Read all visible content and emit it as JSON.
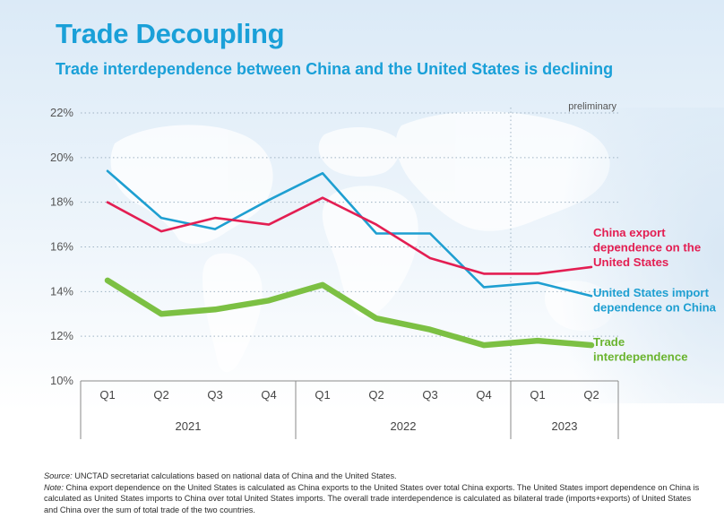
{
  "header": {
    "title": "Trade Decoupling",
    "subtitle": "Trade interdependence between China and the United States is declining"
  },
  "chart_data": {
    "type": "line",
    "title": "Trade Decoupling",
    "subtitle": "Trade interdependence between China and the United States is declining",
    "xlabel": "",
    "ylabel": "",
    "ylim": [
      10,
      22
    ],
    "yticks": [
      10,
      12,
      14,
      16,
      18,
      20,
      22
    ],
    "ytick_labels": [
      "10%",
      "12%",
      "14%",
      "16%",
      "18%",
      "20%",
      "22%"
    ],
    "grid": true,
    "categories": [
      "Q1",
      "Q2",
      "Q3",
      "Q4",
      "Q1",
      "Q2",
      "Q3",
      "Q4",
      "Q1",
      "Q2"
    ],
    "year_groups": [
      {
        "label": "2021",
        "span": 4
      },
      {
        "label": "2022",
        "span": 4
      },
      {
        "label": "2023",
        "span": 2
      }
    ],
    "preliminary_label": "preliminary",
    "series": [
      {
        "name": "United States import dependence on China",
        "label_lines": [
          "United States import",
          "dependence on China"
        ],
        "color": "#1e9fd1",
        "values": [
          19.4,
          17.3,
          16.8,
          18.1,
          19.3,
          16.6,
          16.6,
          14.2,
          14.4,
          13.8
        ]
      },
      {
        "name": "China export dependence on the United States",
        "label_lines": [
          "China export",
          "dependence on the",
          "United States"
        ],
        "color": "#e31e52",
        "values": [
          18.0,
          16.7,
          17.3,
          17.0,
          18.2,
          17.0,
          15.5,
          14.8,
          14.8,
          15.1
        ]
      },
      {
        "name": "Trade interdependence",
        "label_lines": [
          "Trade",
          "interdependence"
        ],
        "color": "#7cc043",
        "values": [
          14.5,
          13.0,
          13.2,
          13.6,
          14.3,
          12.8,
          12.3,
          11.6,
          11.8,
          11.6
        ]
      }
    ]
  },
  "footnotes": {
    "source_label": "Source:",
    "source_text": "UNCTAD secretariat calculations based on national data of China and the United States.",
    "note_label": "Note:",
    "note_text": "China export dependence on the United States is calculated as China exports to the United States over total China exports. The United States import dependence on China is calculated as United States imports to China over total United States imports. The overall trade interdependence is calculated as bilateral trade (imports+exports) of United States and China over the sum of total trade of the two countries."
  }
}
